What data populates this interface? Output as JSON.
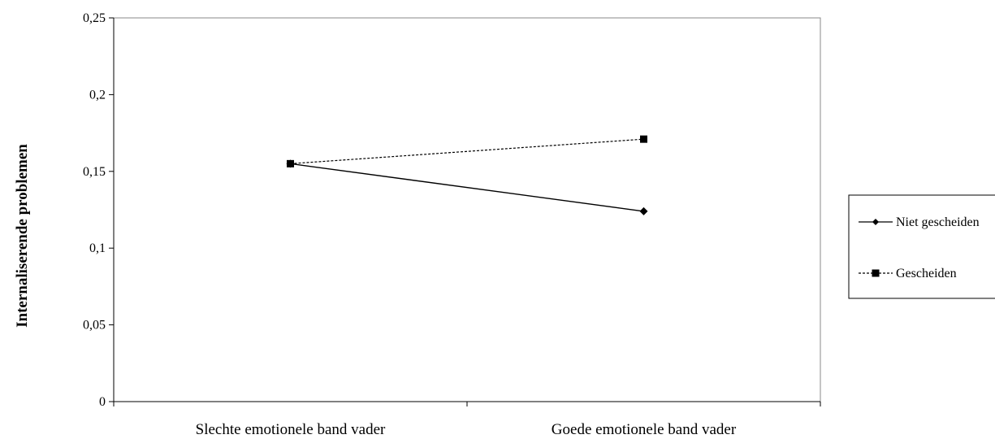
{
  "chart_data": {
    "type": "line",
    "title": "",
    "xlabel": "",
    "ylabel": "Internaliserende problemen",
    "categories": [
      "Slechte emotionele band vader",
      "Goede emotionele band vader"
    ],
    "ylim": [
      0,
      0.25
    ],
    "y_ticks": [
      0,
      0.05,
      0.1,
      0.15,
      0.2,
      0.25
    ],
    "y_tick_labels": [
      "0",
      "0,05",
      "0,1",
      "0,15",
      "0,2",
      "0,25"
    ],
    "grid": false,
    "legend_position": "right",
    "series": [
      {
        "name": "Niet gescheiden",
        "values": [
          0.155,
          0.124
        ],
        "color": "#000000",
        "line_style": "solid",
        "marker": "diamond"
      },
      {
        "name": "Gescheiden",
        "values": [
          0.155,
          0.171
        ],
        "color": "#000000",
        "line_style": "dotted",
        "marker": "square"
      }
    ]
  }
}
